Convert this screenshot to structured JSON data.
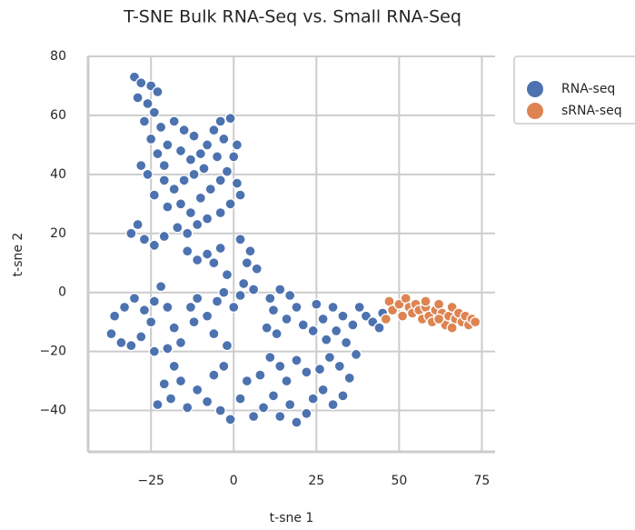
{
  "chart_data": {
    "type": "scatter",
    "title": "T-SNE Bulk RNA-Seq vs. Small RNA-Seq",
    "x_label": "t-sne 1",
    "y_label": "t-sne 2",
    "xlim": [
      -44,
      79
    ],
    "ylim": [
      -54,
      80
    ],
    "xticks": [
      {
        "value": -25,
        "label": "−25"
      },
      0,
      25,
      50,
      75
    ],
    "yticks": [
      {
        "value": -40,
        "label": "−40"
      },
      {
        "value": -20,
        "label": "−20"
      },
      0,
      20,
      40,
      60,
      80
    ],
    "grid": true,
    "legend": "outside upper right",
    "series": [
      {
        "name": "RNA-seq",
        "color": "#4c72b0",
        "x": [
          -30,
          -28,
          -25,
          -23,
          -29,
          -26,
          -24,
          -27,
          -22,
          -25,
          -20,
          -23,
          -28,
          -26,
          -21,
          -18,
          -15,
          -12,
          -16,
          -13,
          -10,
          -8,
          -6,
          -4,
          -1,
          -3,
          1,
          -5,
          0,
          -9,
          -12,
          -15,
          -18,
          -21,
          -24,
          -20,
          -16,
          -13,
          -10,
          -7,
          -4,
          -2,
          1,
          2,
          -1,
          -4,
          -8,
          -11,
          -14,
          -17,
          -29,
          -31,
          -27,
          -24,
          -21,
          -14,
          -11,
          -8,
          -6,
          -4,
          -2,
          2,
          5,
          4,
          7,
          3,
          6,
          -30,
          -33,
          -36,
          -37,
          -34,
          -31,
          -28,
          -25,
          -27,
          -24,
          -22,
          -20,
          -18,
          -16,
          -20,
          -24,
          -13,
          -11,
          -12,
          -8,
          -5,
          -3,
          0,
          2,
          -6,
          -2,
          -18,
          -21,
          -23,
          -19,
          -16,
          -14,
          -11,
          -8,
          -6,
          -3,
          -4,
          -1,
          2,
          4,
          6,
          9,
          8,
          11,
          12,
          14,
          17,
          19,
          22,
          24,
          27,
          30,
          33,
          35,
          32,
          29,
          26,
          22,
          19,
          16,
          14,
          10,
          12,
          11,
          14,
          17,
          19,
          16,
          13,
          21,
          24,
          27,
          25,
          28,
          31,
          34,
          33,
          36,
          38,
          40,
          42,
          44,
          45,
          37,
          30
        ],
        "y": [
          73,
          71,
          70,
          68,
          66,
          64,
          61,
          58,
          56,
          52,
          50,
          47,
          43,
          40,
          43,
          58,
          55,
          53,
          48,
          45,
          47,
          50,
          55,
          58,
          59,
          52,
          50,
          46,
          46,
          42,
          40,
          38,
          35,
          38,
          33,
          29,
          30,
          27,
          32,
          35,
          38,
          41,
          37,
          33,
          30,
          27,
          25,
          23,
          20,
          22,
          23,
          20,
          18,
          16,
          19,
          14,
          11,
          13,
          10,
          15,
          6,
          18,
          14,
          10,
          8,
          3,
          1,
          -2,
          -5,
          -8,
          -14,
          -17,
          -18,
          -15,
          -10,
          -6,
          -3,
          2,
          -5,
          -12,
          -17,
          -19,
          -20,
          -5,
          -2,
          -10,
          -8,
          -3,
          0,
          -5,
          -1,
          -14,
          -18,
          -25,
          -31,
          -38,
          -36,
          -30,
          -39,
          -33,
          -37,
          -28,
          -25,
          -40,
          -43,
          -36,
          -30,
          -42,
          -39,
          -28,
          -22,
          -35,
          -42,
          -38,
          -44,
          -41,
          -36,
          -33,
          -38,
          -35,
          -29,
          -25,
          -22,
          -26,
          -27,
          -23,
          -30,
          -25,
          -12,
          -6,
          -2,
          1,
          -1,
          -5,
          -9,
          -14,
          -11,
          -13,
          -9,
          -4,
          -16,
          -13,
          -17,
          -8,
          -11,
          -5,
          -8,
          -10,
          -12,
          -7,
          -21,
          -5
        ]
      },
      {
        "name": "sRNA-seq",
        "color": "#dd8452",
        "x": [
          46,
          47,
          48,
          50,
          51,
          52,
          53,
          54,
          55,
          56,
          57,
          58,
          59,
          60,
          61,
          62,
          63,
          64,
          65,
          66,
          67,
          68,
          69,
          70,
          71,
          72,
          73,
          62,
          58,
          66
        ],
        "y": [
          -9,
          -3,
          -6,
          -4,
          -8,
          -2,
          -5,
          -7,
          -4,
          -6,
          -9,
          -5,
          -8,
          -10,
          -6,
          -4,
          -7,
          -11,
          -8,
          -5,
          -9,
          -7,
          -10,
          -8,
          -11,
          -9,
          -10,
          -9,
          -3,
          -12
        ]
      }
    ]
  }
}
